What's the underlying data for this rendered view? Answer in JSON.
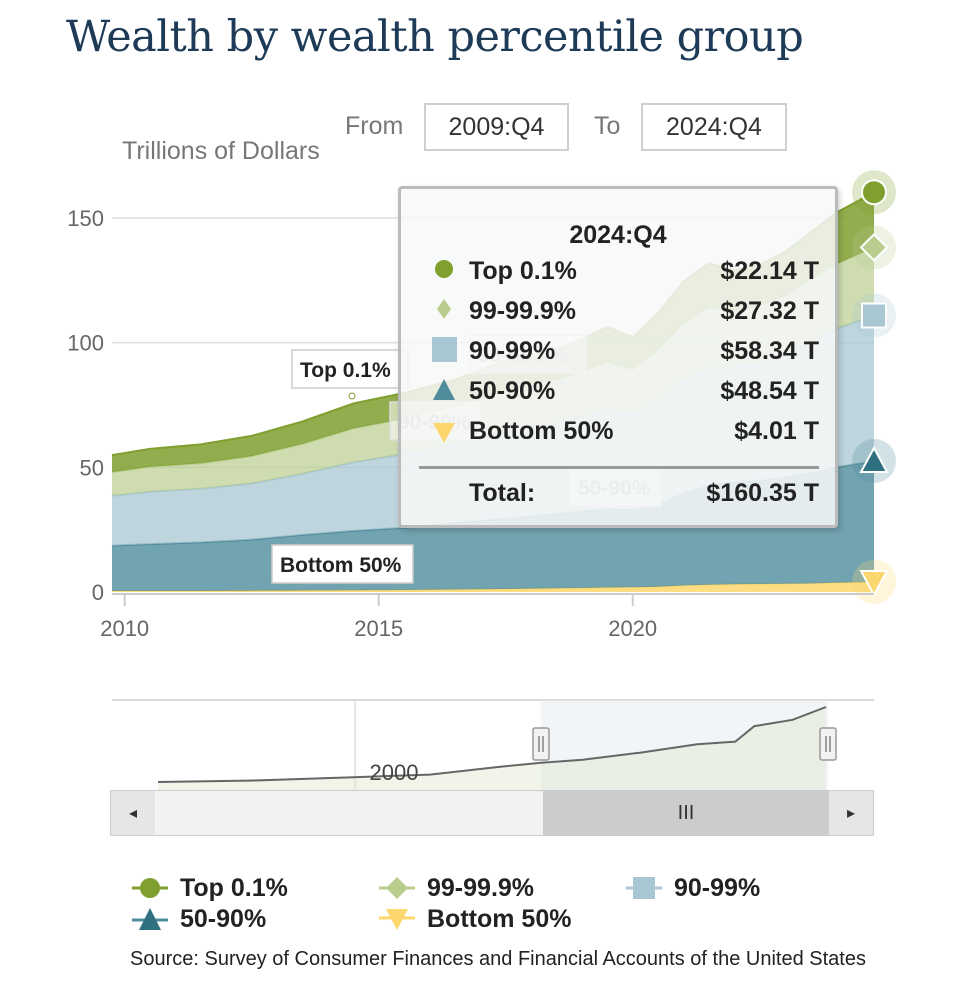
{
  "title": "Wealth by wealth percentile group",
  "range_selector": {
    "from_label": "From",
    "from_value": "2009:Q4",
    "to_label": "To",
    "to_value": "2024:Q4"
  },
  "colors": {
    "top01": "#7f9f2f",
    "p99_999": "#b9cd8e",
    "p90_99": "#a9c7d2",
    "p50_90": "#4f8c9c",
    "bottom50": "#fbd76e"
  },
  "tooltip": {
    "title": "2024:Q4",
    "rows": [
      {
        "name": "Top 0.1%",
        "value": "$22.14 T",
        "icon": "circle-icon"
      },
      {
        "name": "99-99.9%",
        "value": "$27.32 T",
        "icon": "diamond-icon"
      },
      {
        "name": "90-99%",
        "value": "$58.34 T",
        "icon": "square-icon"
      },
      {
        "name": "50-90%",
        "value": "$48.54 T",
        "icon": "triangle-up-icon"
      },
      {
        "name": "Bottom 50%",
        "value": "$4.01 T",
        "icon": "triangle-down-icon"
      }
    ],
    "total_label": "Total:",
    "total_value": "$160.35 T"
  },
  "navigator": {
    "year_label": "2000",
    "left_arrow": "◂",
    "right_arrow": "▸",
    "thumb_grip": "III"
  },
  "legend": [
    {
      "name": "Top 0.1%",
      "icon": "circle-icon"
    },
    {
      "name": "99-99.9%",
      "icon": "diamond-icon"
    },
    {
      "name": "90-99%",
      "icon": "square-icon"
    },
    {
      "name": "50-90%",
      "icon": "triangle-up-icon"
    },
    {
      "name": "Bottom 50%",
      "icon": "triangle-down-icon"
    }
  ],
  "source": "Source: Survey of Consumer Finances and Financial Accounts of the United States",
  "chart_data": {
    "type": "area",
    "stacked": true,
    "ylabel": "Trillions of Dollars",
    "yticks": [
      0,
      50,
      100,
      150
    ],
    "ylim": [
      0,
      160
    ],
    "xticks": [
      2010,
      2015,
      2020
    ],
    "xlim": [
      2009.75,
      2024.75
    ],
    "grid": true,
    "legend_position": "bottom",
    "x": [
      2009.75,
      2010.5,
      2011.5,
      2012.5,
      2013.5,
      2014.5,
      2015.5,
      2016.5,
      2017.5,
      2018.5,
      2019.0,
      2019.5,
      2020.0,
      2020.5,
      2021.0,
      2021.5,
      2022.0,
      2022.5,
      2023.0,
      2023.5,
      2024.0,
      2024.75
    ],
    "series": [
      {
        "name": "Bottom 50%",
        "values": [
          0.4,
          0.4,
          0.4,
          0.5,
          0.6,
          0.7,
          0.8,
          1.0,
          1.2,
          1.5,
          1.6,
          1.8,
          1.9,
          2.1,
          2.6,
          2.9,
          3.1,
          3.2,
          3.3,
          3.4,
          3.7,
          4.01
        ]
      },
      {
        "name": "50-90%",
        "values": [
          18.2,
          18.8,
          19.5,
          20.5,
          22.3,
          23.8,
          25.0,
          26.8,
          28.3,
          29.8,
          30.7,
          31.5,
          31.0,
          33.0,
          37.0,
          39.8,
          41.0,
          41.5,
          42.5,
          44.3,
          46.3,
          48.54
        ]
      },
      {
        "name": "90-99%",
        "values": [
          20.0,
          21.0,
          21.5,
          22.5,
          24.5,
          27.5,
          29.5,
          31.5,
          34.5,
          36.5,
          38.0,
          40.0,
          38.5,
          42.0,
          45.5,
          47.5,
          46.5,
          47.5,
          49.5,
          52.5,
          55.5,
          58.34
        ]
      },
      {
        "name": "99-99.9%",
        "values": [
          9.5,
          10.0,
          10.2,
          11.0,
          12.0,
          13.6,
          14.2,
          15.0,
          16.7,
          17.4,
          18.0,
          19.0,
          17.8,
          20.0,
          22.5,
          23.8,
          22.2,
          22.5,
          23.5,
          25.0,
          26.0,
          27.32
        ]
      },
      {
        "name": "Top 0.1%",
        "values": [
          6.8,
          7.2,
          7.6,
          8.1,
          9.0,
          10.0,
          10.3,
          10.8,
          12.1,
          12.2,
          13.0,
          14.0,
          13.0,
          14.7,
          17.0,
          17.8,
          16.2,
          16.5,
          17.5,
          19.0,
          20.5,
          22.14
        ]
      }
    ],
    "series_labels": [
      "Top 0.1%",
      "99-99.9%",
      "90-99%",
      "50-90%",
      "Bottom 50%"
    ]
  }
}
